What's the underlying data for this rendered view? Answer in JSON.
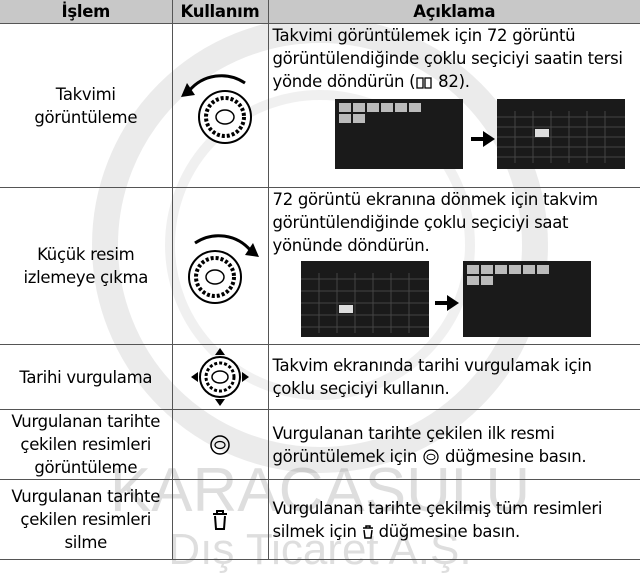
{
  "table": {
    "headers": [
      "İşlem",
      "Kullanım",
      "Açıklama"
    ],
    "rows": [
      {
        "action": "Takvimi görüntüleme",
        "description": "Takvimi görüntülemek için 72 görüntü görüntülendiğinde çoklu seçiciyi saatin tersi yönde döndürün (",
        "description_after": " 82)."
      },
      {
        "action": "Küçük resim izlemeye çıkma",
        "description": "72 görüntü ekranına dönmek için takvim görüntülendiğinde çoklu seçiciyi saat yönünde döndürün."
      },
      {
        "action": "Tarihi vurgulama",
        "description": "Takvim ekranında tarihi vurgulamak için çoklu seçiciyi kullanın."
      },
      {
        "action": "Vurgulanan tarihte çekilen resimleri görüntüleme",
        "description": "Vurgulanan tarihte çekilen ilk resmi görüntülemek için",
        "description_after": "düğmesine basın."
      },
      {
        "action": "Vurgulanan tarihte çekilen resimleri silme",
        "description": "Vurgulanan tarihte çekilmiş tüm resimleri silmek için",
        "description_after": "düğmesine basın."
      }
    ]
  },
  "watermark": {
    "line1": "KARACASULU",
    "line2": "Dış Ticaret A.Ş."
  }
}
